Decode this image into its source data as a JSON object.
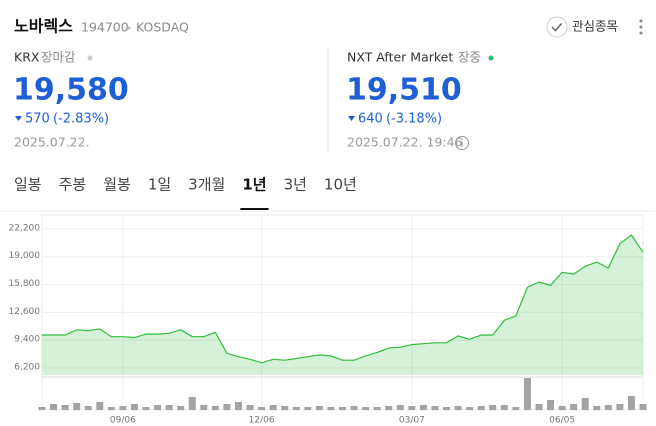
{
  "header": {
    "name": "노바렉스",
    "code": "194700",
    "market": "KOSDAQ",
    "watch_button": "관심종목"
  },
  "krx": {
    "label": "KRX",
    "status": "장마감",
    "price": "19,580",
    "change": "570",
    "change_pct": "(-2.83%)",
    "date": "2025.07.22."
  },
  "nxt": {
    "label": "NXT After Market",
    "status": "장중",
    "price": "19,510",
    "change": "640",
    "change_pct": "(-3.18%)",
    "date": "2025.07.22. 19:46"
  },
  "tabs": {
    "items": [
      "일봉",
      "주봉",
      "월봉",
      "1일",
      "3개월",
      "1년",
      "3년",
      "10년"
    ],
    "active": 5
  },
  "chart_data": {
    "type": "line",
    "categories": [
      null,
      null,
      null,
      null,
      null,
      null,
      null,
      "09/06",
      null,
      null,
      null,
      null,
      null,
      null,
      null,
      null,
      null,
      null,
      null,
      "12/06",
      null,
      null,
      null,
      null,
      null,
      null,
      null,
      null,
      null,
      null,
      null,
      null,
      "03/07",
      null,
      null,
      null,
      null,
      null,
      null,
      null,
      null,
      null,
      null,
      null,
      null,
      "06/05",
      null,
      null,
      null,
      null,
      null,
      null,
      null
    ],
    "series": [
      {
        "color": "#2fbf3a",
        "values": [
          10000,
          10000,
          10000,
          10600,
          10500,
          10700,
          9800,
          9800,
          9700,
          10100,
          10100,
          10200,
          10600,
          9800,
          9800,
          10300,
          7900,
          7500,
          7200,
          6800,
          7200,
          7100,
          7300,
          7500,
          7700,
          7600,
          7100,
          7100,
          7600,
          8000,
          8500,
          8600,
          8900,
          9000,
          9100,
          9100,
          9900,
          9500,
          10000,
          10000,
          11700,
          12200,
          15500,
          16100,
          15700,
          17200,
          17000,
          17900,
          18400,
          17700,
          20500,
          21500,
          19510
        ]
      }
    ],
    "volume": {
      "color": "#a3a3a3",
      "values": [
        3,
        6,
        5,
        7,
        4,
        8,
        3,
        4,
        6,
        3,
        5,
        5,
        4,
        13,
        5,
        4,
        6,
        8,
        5,
        3,
        5,
        4,
        3,
        3,
        4,
        3,
        3,
        4,
        3,
        3,
        4,
        5,
        4,
        5,
        4,
        3,
        4,
        3,
        4,
        5,
        5,
        3,
        32,
        6,
        10,
        4,
        6,
        12,
        4,
        5,
        6,
        14,
        6
      ]
    },
    "ylim": [
      5400,
      23800
    ],
    "yticks": [
      {
        "value": 22200,
        "label": "22,200"
      },
      {
        "value": 19000,
        "label": "19,000"
      },
      {
        "value": 15800,
        "label": "15,800"
      },
      {
        "value": 12600,
        "label": "12,600"
      },
      {
        "value": 9400,
        "label": "9,400"
      },
      {
        "value": 6200,
        "label": "6,200"
      }
    ],
    "grid": true
  }
}
